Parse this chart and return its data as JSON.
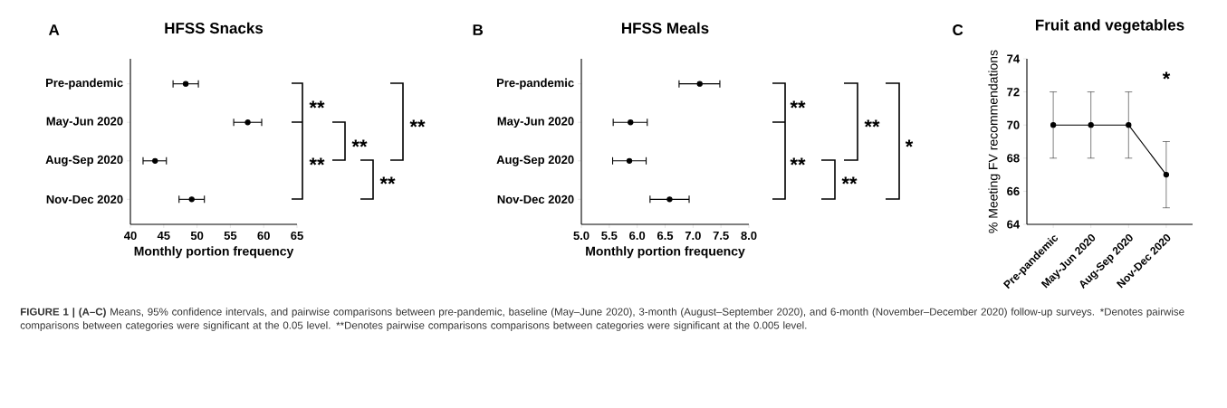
{
  "chart_data": [
    {
      "type": "scatter",
      "orientation": "horizontal",
      "title": "HFSS Snacks",
      "xlabel": "Monthly portion frequency",
      "categories": [
        "Pre-pandemic",
        "May-Jun 2020",
        "Aug-Sep 2020",
        "Nov-Dec 2020"
      ],
      "values": [
        48.3,
        57.6,
        43.7,
        49.2
      ],
      "errors": [
        [
          46.4,
          50.2
        ],
        [
          55.5,
          59.7
        ],
        [
          41.9,
          45.4
        ],
        [
          47.3,
          51.1
        ]
      ],
      "color": "#000000",
      "marker": "circle",
      "xlim": [
        40,
        65
      ],
      "xticks": [
        40,
        45,
        50,
        55,
        60,
        65
      ],
      "annotations": [
        "A",
        "**",
        "**",
        "**",
        "**",
        "**"
      ]
    },
    {
      "type": "scatter",
      "orientation": "horizontal",
      "title": "HFSS Meals",
      "xlabel": "Monthly portion frequency",
      "categories": [
        "Pre-pandemic",
        "May-Jun 2020",
        "Aug-Sep 2020",
        "Nov-Dec 2020"
      ],
      "values": [
        7.12,
        5.88,
        5.86,
        6.58
      ],
      "errors": [
        [
          6.75,
          7.48
        ],
        [
          5.57,
          6.18
        ],
        [
          5.56,
          6.16
        ],
        [
          6.23,
          6.93
        ]
      ],
      "color": "#000000",
      "marker": "circle",
      "xlim": [
        5,
        8
      ],
      "xticks": [
        {
          "value": 5,
          "label": "5.0"
        },
        {
          "value": 5.5,
          "label": "5.5"
        },
        {
          "value": 6,
          "label": "6.0"
        },
        {
          "value": 6.5,
          "label": "6.5"
        },
        {
          "value": 7,
          "label": "7.0"
        },
        {
          "value": 7.5,
          "label": "7.5"
        },
        {
          "value": 8,
          "label": "8.0"
        }
      ],
      "annotations": [
        "B",
        "**",
        "**",
        "**",
        "**",
        "*"
      ]
    },
    {
      "type": "line",
      "title": "Fruit and vegetables",
      "ylabel": "% Meeting FV recommendations",
      "categories": [
        "Pre-pandemic",
        "May-Jun 2020",
        "Aug-Sep 2020",
        "Nov-Dec 2020"
      ],
      "values": [
        70,
        70,
        70,
        67
      ],
      "errors": [
        [
          68,
          72
        ],
        [
          68,
          72
        ],
        [
          68,
          72
        ],
        [
          65,
          69
        ]
      ],
      "color": "#000000",
      "marker": "circle",
      "ylim": [
        64,
        74
      ],
      "yticks": [
        64,
        66,
        68,
        70,
        72,
        74
      ],
      "annotations": [
        "C",
        "*",
        "**FIGURE 1 | (A–C)** Means, 95% confidence intervals, and pairwise comparisons between pre-pandemic, baseline (May–June 2020), 3-month (August–September 2020), and 6-month (November–December 2020) follow-up surveys. *Denotes pairwise comparisons between categories were significant at the 0.05 level. **Denotes pairwise comparisons comparisons between categories were significant at the 0.005 level."
      ]
    }
  ]
}
